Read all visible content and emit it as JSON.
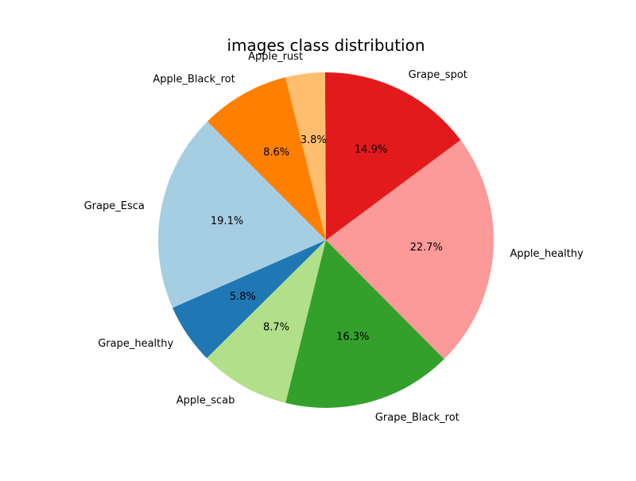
{
  "chart_data": {
    "type": "pie",
    "title": "images class distribution",
    "start_angle_deg": 135,
    "direction": "counterclockwise",
    "slices": [
      {
        "label": "Grape_Esca",
        "value": 19.1,
        "pct_label": "19.1%",
        "color": "#a6cee3"
      },
      {
        "label": "Grape_healthy",
        "value": 5.8,
        "pct_label": "5.8%",
        "color": "#1f78b4"
      },
      {
        "label": "Apple_scab",
        "value": 8.7,
        "pct_label": "8.7%",
        "color": "#b2df8a"
      },
      {
        "label": "Grape_Black_rot",
        "value": 16.3,
        "pct_label": "16.3%",
        "color": "#33a02c"
      },
      {
        "label": "Apple_healthy",
        "value": 22.7,
        "pct_label": "22.7%",
        "color": "#fb9a99"
      },
      {
        "label": "Grape_spot",
        "value": 14.9,
        "pct_label": "14.9%",
        "color": "#e31a1c"
      },
      {
        "label": "Apple_rust",
        "value": 3.8,
        "pct_label": "3.8%",
        "color": "#fdbf6f"
      },
      {
        "label": "Apple_Black_rot",
        "value": 8.6,
        "pct_label": "8.6%",
        "color": "#ff7f00"
      }
    ]
  }
}
